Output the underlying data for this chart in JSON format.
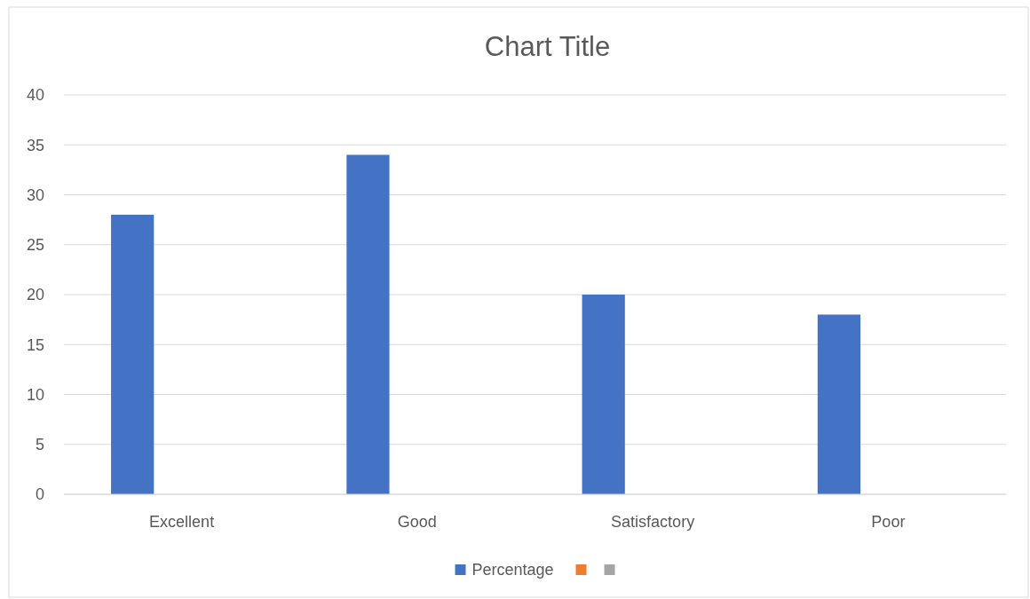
{
  "chart_data": {
    "type": "bar",
    "title": "Chart Title",
    "categories": [
      "Excellent",
      "Good",
      "Satisfactory",
      "Poor"
    ],
    "series": [
      {
        "name": "Percentage",
        "color": "#4472c4",
        "values": [
          28,
          34,
          20,
          18
        ]
      },
      {
        "color": "#ed7d31",
        "values": [
          null,
          null,
          null,
          null
        ]
      },
      {
        "color": "#a5a5a5",
        "values": [
          null,
          null,
          null,
          null
        ]
      }
    ],
    "ylim": [
      0,
      40
    ],
    "yticks": [
      0,
      5,
      10,
      15,
      20,
      25,
      30,
      35,
      40
    ],
    "grid": "y",
    "legend": "bottom"
  }
}
